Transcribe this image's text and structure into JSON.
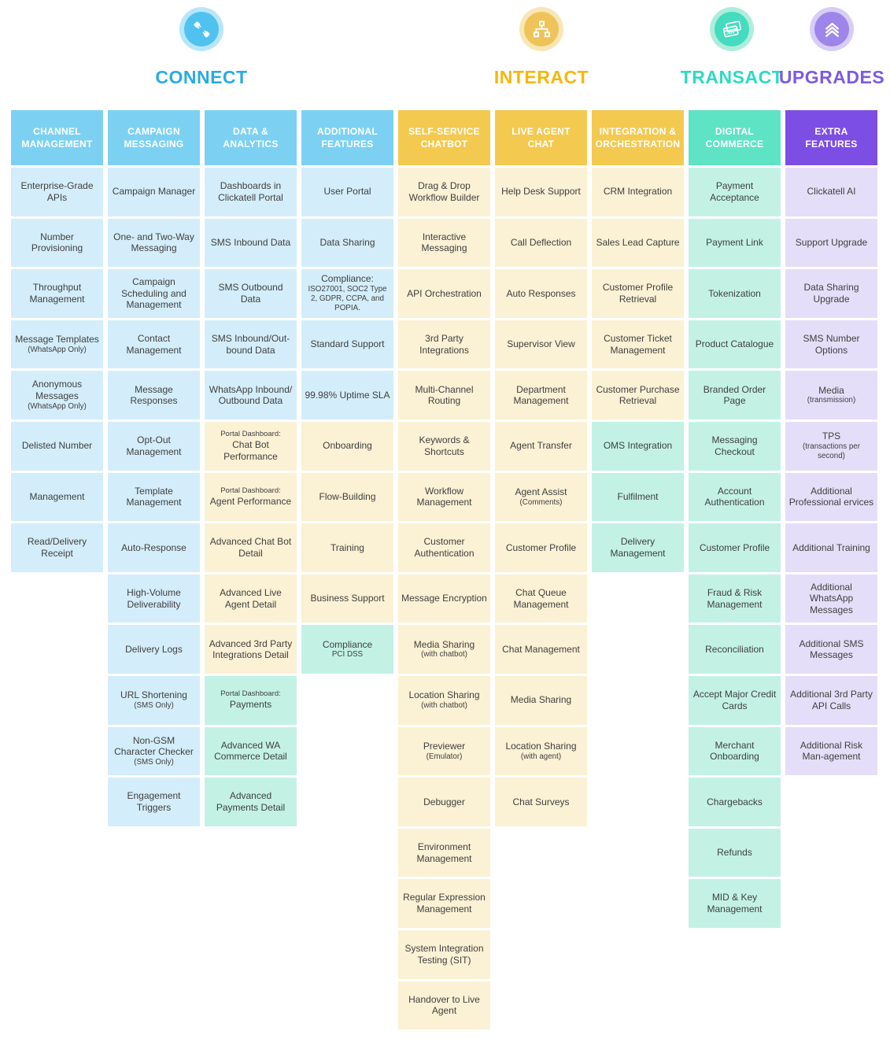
{
  "page": {
    "background": "#ffffff"
  },
  "palette": {
    "header_blue": "#7cd1f3",
    "header_yellow": "#f3c94f",
    "header_teal": "#5fe3c5",
    "header_purple": "#7d4ee4",
    "cell_blue": "#d4edfa",
    "cell_cream": "#fbf1d4",
    "cell_teal": "#c3f2e5",
    "cell_purple": "#e5def9",
    "cell_text": "#3f3f3f"
  },
  "groups": [
    {
      "id": "connect",
      "label": "CONNECT",
      "title_color": "#29abe2",
      "icon": "plug-icon",
      "icon_outer": "#b8e6fa",
      "icon_inner": "#50c2ef"
    },
    {
      "id": "interact",
      "label": "INTERACT",
      "title_color": "#f5b70a",
      "icon": "org-chart-icon",
      "icon_outer": "#f8e6b4",
      "icon_inner": "#eec45a"
    },
    {
      "id": "transact",
      "label": "TRANSACT",
      "title_color": "#2ed9c3",
      "icon": "credit-cards-icon",
      "icon_outer": "#aeeddc",
      "icon_inner": "#44dbbe"
    },
    {
      "id": "upgrades",
      "label": "UPGRADES",
      "title_color": "#7b5be4",
      "icon": "double-chevron-up-icon",
      "icon_outer": "#d8cdf6",
      "icon_inner": "#9d85ea"
    }
  ],
  "columns": [
    {
      "header": "CHANNEL MANAGEMENT",
      "header_color": "blue",
      "group": "connect",
      "cells": [
        {
          "text": "Enterprise-Grade APIs",
          "color": "blue"
        },
        {
          "text": "Number Provisioning",
          "color": "blue"
        },
        {
          "text": "Throughput Management",
          "color": "blue"
        },
        {
          "text": "Message Templates",
          "sub": "(WhatsApp Only)",
          "color": "blue"
        },
        {
          "text": "Anonymous Messages",
          "sub": "(WhatsApp Only)",
          "color": "blue"
        },
        {
          "text": "Delisted Number",
          "color": "blue"
        },
        {
          "text": "Management",
          "color": "blue"
        },
        {
          "text": "Read/Delivery Receipt",
          "color": "blue"
        }
      ]
    },
    {
      "header": "CAMPAIGN MESSAGING",
      "header_color": "blue",
      "group": "connect",
      "cells": [
        {
          "text": "Campaign Manager",
          "color": "blue"
        },
        {
          "text": "One- and Two-Way Messaging",
          "color": "blue"
        },
        {
          "text": "Campaign Scheduling and Management",
          "color": "blue"
        },
        {
          "text": "Contact Management",
          "color": "blue"
        },
        {
          "text": "Message Responses",
          "color": "blue"
        },
        {
          "text": "Opt-Out Management",
          "color": "blue"
        },
        {
          "text": "Template Management",
          "color": "blue"
        },
        {
          "text": "Auto-Response",
          "color": "blue"
        },
        {
          "text": "High-Volume Deliverability",
          "color": "blue"
        },
        {
          "text": "Delivery Logs",
          "color": "blue"
        },
        {
          "text": "URL Shortening",
          "sub": "(SMS Only)",
          "color": "blue"
        },
        {
          "text": "Non-GSM Character Checker",
          "sub": "(SMS Only)",
          "color": "blue"
        },
        {
          "text": "Engagement Triggers",
          "color": "blue"
        }
      ]
    },
    {
      "header": "DATA & ANALYTICS",
      "header_color": "blue",
      "group": "connect",
      "cells": [
        {
          "text": "Dashboards in Clickatell Portal",
          "color": "blue"
        },
        {
          "text": "SMS Inbound Data",
          "color": "blue"
        },
        {
          "text": "SMS Outbound Data",
          "color": "blue"
        },
        {
          "text": "SMS Inbound/Out-bound Data",
          "color": "blue"
        },
        {
          "text": "WhatsApp Inbound/ Outbound Data",
          "color": "blue"
        },
        {
          "pre": "Portal Dashboard:",
          "text": "Chat Bot Performance",
          "color": "cream"
        },
        {
          "pre": "Portal Dashboard:",
          "text": "Agent Performance",
          "color": "cream"
        },
        {
          "text": "Advanced Chat Bot Detail",
          "color": "cream"
        },
        {
          "text": "Advanced Live Agent Detail",
          "color": "cream"
        },
        {
          "text": "Advanced 3rd Party Integrations Detail",
          "color": "cream"
        },
        {
          "pre": "Portal Dashboard:",
          "text": "Payments",
          "color": "teal"
        },
        {
          "text": "Advanced WA Commerce Detail",
          "color": "teal"
        },
        {
          "text": "Advanced Payments Detail",
          "color": "teal"
        }
      ]
    },
    {
      "header": "ADDITIONAL FEATURES",
      "header_color": "blue",
      "group": "connect",
      "cells": [
        {
          "text": "User Portal",
          "color": "blue"
        },
        {
          "text": "Data Sharing",
          "color": "blue"
        },
        {
          "text": "Compliance:",
          "sub": "ISO27001, SOC2 Type 2, GDPR, CCPA, and POPIA.",
          "color": "blue"
        },
        {
          "text": "Standard Support",
          "color": "blue"
        },
        {
          "text": "99.98% Uptime SLA",
          "color": "blue"
        },
        {
          "text": "Onboarding",
          "color": "cream"
        },
        {
          "text": "Flow-Building",
          "color": "cream"
        },
        {
          "text": "Training",
          "color": "cream"
        },
        {
          "text": "Business Support",
          "color": "cream"
        },
        {
          "text": "Compliance",
          "sub": "PCI DSS",
          "color": "teal"
        }
      ]
    },
    {
      "header": "SELF-SERVICE CHATBOT",
      "header_color": "yellow",
      "group": "interact",
      "cells": [
        {
          "text": "Drag & Drop Workflow Builder",
          "color": "cream"
        },
        {
          "text": "Interactive Messaging",
          "color": "cream"
        },
        {
          "text": "API Orchestration",
          "color": "cream"
        },
        {
          "text": "3rd Party Integrations",
          "color": "cream"
        },
        {
          "text": "Multi-Channel Routing",
          "color": "cream"
        },
        {
          "text": "Keywords & Shortcuts",
          "color": "cream"
        },
        {
          "text": "Workflow Management",
          "color": "cream"
        },
        {
          "text": "Customer Authentication",
          "color": "cream"
        },
        {
          "text": "Message Encryption",
          "color": "cream"
        },
        {
          "text": "Media Sharing",
          "sub": "(with chatbot)",
          "color": "cream"
        },
        {
          "text": "Location Sharing",
          "sub": "(with chatbot)",
          "color": "cream"
        },
        {
          "text": "Previewer",
          "sub": "(Emulator)",
          "color": "cream"
        },
        {
          "text": "Debugger",
          "color": "cream"
        },
        {
          "text": "Environment Management",
          "color": "cream"
        },
        {
          "text": "Regular Expression Management",
          "color": "cream"
        },
        {
          "text": "System Integration Testing (SIT)",
          "color": "cream"
        },
        {
          "text": "Handover to Live Agent",
          "color": "cream"
        }
      ]
    },
    {
      "header": "LIVE AGENT CHAT",
      "header_color": "yellow",
      "group": "interact",
      "cells": [
        {
          "text": "Help Desk Support",
          "color": "cream"
        },
        {
          "text": "Call Deflection",
          "color": "cream"
        },
        {
          "text": "Auto Responses",
          "color": "cream"
        },
        {
          "text": "Supervisor View",
          "color": "cream"
        },
        {
          "text": "Department Management",
          "color": "cream"
        },
        {
          "text": "Agent Transfer",
          "color": "cream"
        },
        {
          "text": "Agent Assist",
          "sub": "(Comments)",
          "color": "cream"
        },
        {
          "text": "Customer Profile",
          "color": "cream"
        },
        {
          "text": "Chat Queue Management",
          "color": "cream"
        },
        {
          "text": "Chat Management",
          "color": "cream"
        },
        {
          "text": "Media Sharing",
          "color": "cream"
        },
        {
          "text": "Location Sharing",
          "sub": "(with agent)",
          "color": "cream"
        },
        {
          "text": "Chat Surveys",
          "color": "cream"
        }
      ]
    },
    {
      "header": "INTEGRATION & ORCHESTRATION",
      "header_color": "yellow",
      "group": "interact",
      "cells": [
        {
          "text": "CRM Integration",
          "color": "cream"
        },
        {
          "text": "Sales Lead Capture",
          "color": "cream"
        },
        {
          "text": "Customer Profile Retrieval",
          "color": "cream"
        },
        {
          "text": "Customer Ticket Management",
          "color": "cream"
        },
        {
          "text": "Customer Purchase Retrieval",
          "color": "cream"
        },
        {
          "text": "OMS Integration",
          "color": "teal"
        },
        {
          "text": "Fulfilment",
          "color": "teal"
        },
        {
          "text": "Delivery Management",
          "color": "teal"
        }
      ]
    },
    {
      "header": "DIGITAL COMMERCE",
      "header_color": "teal",
      "group": "transact",
      "cells": [
        {
          "text": "Payment Acceptance",
          "color": "teal"
        },
        {
          "text": "Payment Link",
          "color": "teal"
        },
        {
          "text": "Tokenization",
          "color": "teal"
        },
        {
          "text": "Product Catalogue",
          "color": "teal"
        },
        {
          "text": "Branded Order Page",
          "color": "teal"
        },
        {
          "text": "Messaging Checkout",
          "color": "teal"
        },
        {
          "text": "Account Authentication",
          "color": "teal"
        },
        {
          "text": "Customer Profile",
          "color": "teal"
        },
        {
          "text": "Fraud & Risk Management",
          "color": "teal"
        },
        {
          "text": "Reconciliation",
          "color": "teal"
        },
        {
          "text": "Accept Major Credit Cards",
          "color": "teal"
        },
        {
          "text": "Merchant Onboarding",
          "color": "teal"
        },
        {
          "text": "Chargebacks",
          "color": "teal"
        },
        {
          "text": "Refunds",
          "color": "teal"
        },
        {
          "text": "MID & Key Management",
          "color": "teal"
        }
      ]
    },
    {
      "header": "EXTRA FEATURES",
      "header_color": "purple",
      "group": "upgrades",
      "cells": [
        {
          "text": "Clickatell AI",
          "color": "purple"
        },
        {
          "text": "Support Upgrade",
          "color": "purple"
        },
        {
          "text": "Data Sharing Upgrade",
          "color": "purple"
        },
        {
          "text": "SMS Number Options",
          "color": "purple"
        },
        {
          "text": "Media",
          "sub": "(transmission)",
          "color": "purple"
        },
        {
          "text": "TPS",
          "sub": "(transactions per second)",
          "color": "purple"
        },
        {
          "text": "Additional Professional ervices",
          "color": "purple"
        },
        {
          "text": "Additional Training",
          "color": "purple"
        },
        {
          "text": "Additional WhatsApp Messages",
          "color": "purple"
        },
        {
          "text": "Additional SMS Messages",
          "color": "purple"
        },
        {
          "text": "Additional 3rd Party API Calls",
          "color": "purple"
        },
        {
          "text": "Additional Risk Man-agement",
          "color": "purple"
        }
      ]
    }
  ]
}
